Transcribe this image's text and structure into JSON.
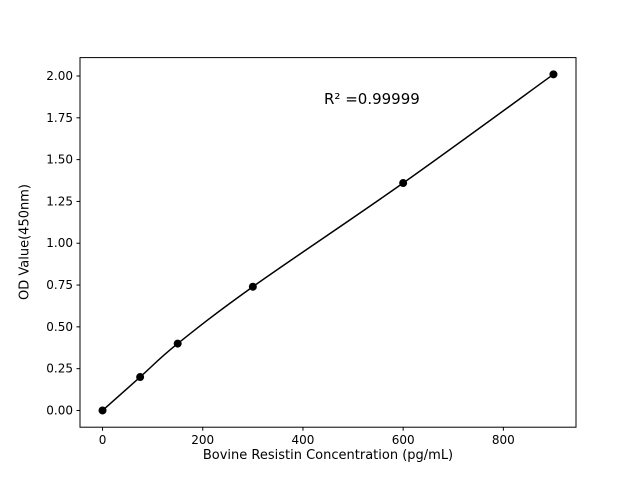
{
  "chart_data": {
    "type": "scatter",
    "title": "",
    "xlabel": "Bovine Resistin Concentration (pg/mL)",
    "ylabel": "OD Value(450nm)",
    "annotation": "R² =0.99999",
    "annotation_xy": [
      445,
      1.85
    ],
    "x": [
      0,
      75,
      150,
      300,
      600,
      900
    ],
    "y": [
      0.0,
      0.2,
      0.4,
      0.74,
      1.36,
      2.01
    ],
    "xlim": [
      -45,
      945
    ],
    "ylim": [
      -0.1,
      2.11
    ],
    "x_ticks": [
      0,
      200,
      400,
      600,
      800
    ],
    "y_ticks": [
      0.0,
      0.25,
      0.5,
      0.75,
      1.0,
      1.25,
      1.5,
      1.75,
      2.0
    ],
    "y_tick_decimals": 2,
    "grid": false,
    "legend": null,
    "line_color": "#000000",
    "marker_color": "#000000",
    "background_color": "#ffffff"
  }
}
